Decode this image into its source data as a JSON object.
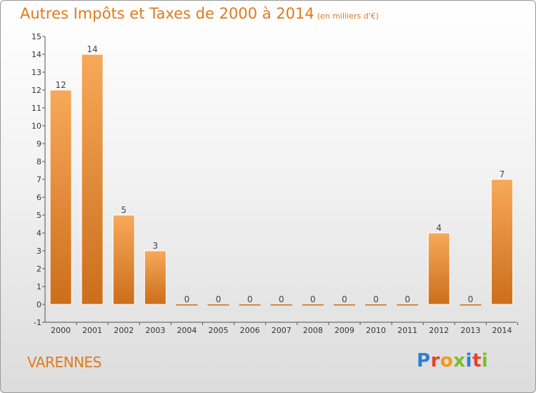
{
  "header": {
    "title": "Autres Impôts et Taxes de 2000 à 2014",
    "subtitle": "(en milliers d'€)"
  },
  "footer": {
    "commune": "VARENNES",
    "logo_text": "Proxiti"
  },
  "colors": {
    "accent": "#e07a1e",
    "bar_light": "#f7a95a",
    "bar_dark": "#cc6e1b",
    "logo_letters": [
      "#2f7fd1",
      "#e8412b",
      "#f29a1d",
      "#7abf2a",
      "#2f7fd1",
      "#e8412b",
      "#7abf2a"
    ]
  },
  "chart_data": {
    "type": "bar",
    "title": "Autres Impôts et Taxes de 2000 à 2014",
    "subtitle": "(en milliers d'€)",
    "categories": [
      "2000",
      "2001",
      "2002",
      "2003",
      "2004",
      "2005",
      "2006",
      "2007",
      "2008",
      "2009",
      "2010",
      "2011",
      "2012",
      "2013",
      "2014"
    ],
    "values": [
      12,
      14,
      5,
      3,
      0,
      0,
      0,
      0,
      0,
      0,
      0,
      0,
      4,
      0,
      7
    ],
    "data_labels": [
      "12",
      "14",
      "5",
      "3",
      "0",
      "0",
      "0",
      "0",
      "0",
      "0",
      "0",
      "0",
      "4",
      "0",
      "7"
    ],
    "yticks": [
      "-1",
      "0",
      "1",
      "2",
      "3",
      "4",
      "5",
      "6",
      "7",
      "8",
      "9",
      "10",
      "11",
      "12",
      "13",
      "14",
      "15"
    ],
    "ylim": [
      -1,
      15
    ],
    "xlabel": "",
    "ylabel": "",
    "grid": false,
    "legend": "none"
  }
}
